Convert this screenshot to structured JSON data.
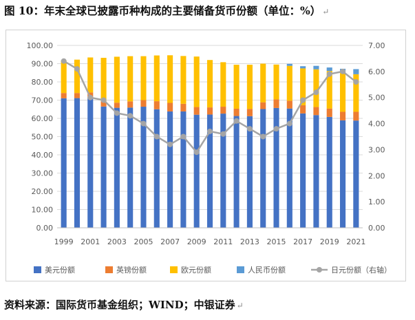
{
  "title": "图 10：年末全球已披露币种构成的主要储备货币份额（单位：%）",
  "paragraph_mark": "↵",
  "source": "资料来源：国际货币基金组织；WIND；中银证券",
  "chart_data": {
    "type": "bar",
    "stacked": true,
    "years": [
      1999,
      2000,
      2001,
      2002,
      2003,
      2004,
      2005,
      2006,
      2007,
      2008,
      2009,
      2010,
      2011,
      2012,
      2013,
      2014,
      2015,
      2016,
      2017,
      2018,
      2019,
      2020,
      2021
    ],
    "x_tick_labels": [
      "1999",
      "2001",
      "2003",
      "2005",
      "2007",
      "2009",
      "2011",
      "2013",
      "2015",
      "2017",
      "2019",
      "2021"
    ],
    "series": [
      {
        "name": "美元份额",
        "color": "#4472C4",
        "axis": "left",
        "values": [
          71.0,
          71.1,
          71.5,
          66.5,
          65.8,
          65.9,
          66.4,
          65.0,
          63.8,
          63.8,
          62.0,
          62.1,
          62.6,
          61.3,
          61.2,
          65.1,
          65.7,
          65.4,
          62.7,
          61.8,
          60.8,
          58.9,
          58.8
        ]
      },
      {
        "name": "英镑份额",
        "color": "#ED7D31",
        "axis": "left",
        "values": [
          2.9,
          2.8,
          2.7,
          2.9,
          2.8,
          3.4,
          3.6,
          4.4,
          4.7,
          4.2,
          4.2,
          3.9,
          3.8,
          4.0,
          4.0,
          3.7,
          4.7,
          4.3,
          4.5,
          4.4,
          4.6,
          4.7,
          4.8
        ]
      },
      {
        "name": "欧元份额",
        "color": "#FFC000",
        "axis": "left",
        "values": [
          17.9,
          18.3,
          19.2,
          23.8,
          25.2,
          24.8,
          24.1,
          25.1,
          26.1,
          26.2,
          27.7,
          26.0,
          24.4,
          24.1,
          24.2,
          21.2,
          19.1,
          19.1,
          20.2,
          20.7,
          20.6,
          21.3,
          20.6
        ]
      },
      {
        "name": "人民币份额",
        "color": "#5B9BD5",
        "axis": "left",
        "values": [
          0,
          0,
          0,
          0,
          0,
          0,
          0,
          0,
          0,
          0,
          0,
          0,
          0,
          0,
          0,
          0,
          0,
          1.1,
          1.2,
          1.9,
          1.9,
          2.3,
          2.8
        ]
      },
      {
        "name": "日元份额（右轴）",
        "color": "#A5A5A5",
        "axis": "right",
        "type": "line",
        "values": [
          6.4,
          6.1,
          5.0,
          4.9,
          4.4,
          4.3,
          4.0,
          3.5,
          3.2,
          3.5,
          2.9,
          3.7,
          3.6,
          4.1,
          3.8,
          3.5,
          3.8,
          4.0,
          4.9,
          5.2,
          5.9,
          6.0,
          5.6
        ]
      }
    ],
    "y_left": {
      "min": 0,
      "max": 100,
      "step": 10,
      "tick_labels": [
        "0.00",
        "10.00",
        "20.00",
        "30.00",
        "40.00",
        "50.00",
        "60.00",
        "70.00",
        "80.00",
        "90.00",
        "100.00"
      ]
    },
    "y_right": {
      "min": 0,
      "max": 7,
      "step": 1,
      "tick_labels": [
        "0.00",
        "1.00",
        "2.00",
        "3.00",
        "4.00",
        "5.00",
        "6.00",
        "7.00"
      ]
    },
    "grid": true,
    "legend_position": "bottom"
  }
}
